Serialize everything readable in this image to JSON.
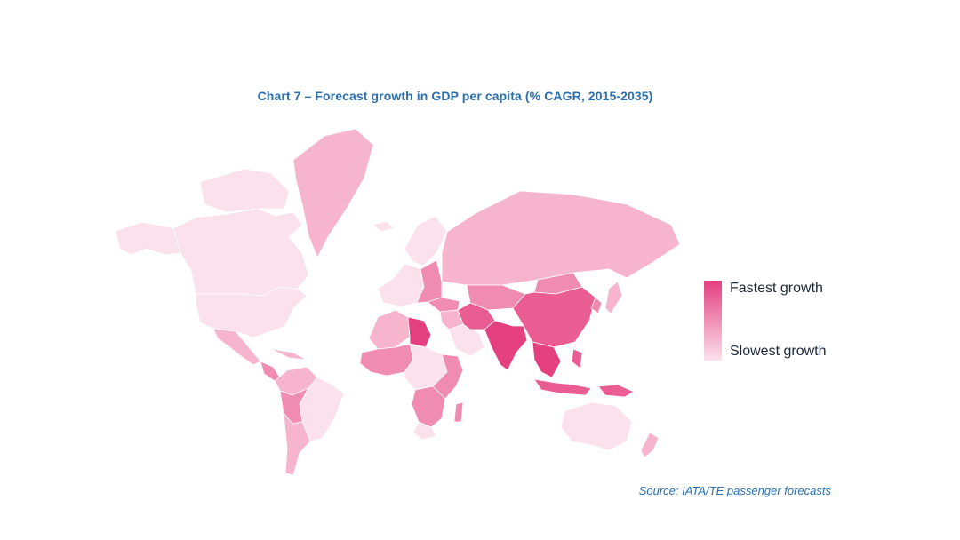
{
  "title": "Chart 7 – Forecast growth in GDP per capita (% CAGR, 2015-2035)",
  "legend": {
    "high_label": "Fastest growth",
    "low_label": "Slowest growth"
  },
  "source": "Source: IATA/TE passenger forecasts",
  "colors": {
    "title": "#2a6fb0",
    "source": "#2a6fb0",
    "no_data": "#ffffff",
    "level_1": "#fbe1ec",
    "level_2": "#f6b4cd",
    "level_3": "#f08bb1",
    "level_4": "#ea5d93",
    "level_5": "#e43f7f",
    "border": "#ffffff"
  },
  "map_data": {
    "type": "choropleth",
    "scale": "relative growth, 1 = slowest, 5 = fastest",
    "regions": [
      {
        "name": "Canada",
        "level": 1
      },
      {
        "name": "Alaska",
        "level": 1
      },
      {
        "name": "Greenland",
        "level": 2
      },
      {
        "name": "Arctic islands",
        "level": 1
      },
      {
        "name": "United States",
        "level": 1
      },
      {
        "name": "Mexico",
        "level": 2
      },
      {
        "name": "Central America",
        "level": 3
      },
      {
        "name": "Caribbean",
        "level": 2
      },
      {
        "name": "Colombia / Venezuela",
        "level": 2
      },
      {
        "name": "Brazil",
        "level": 1
      },
      {
        "name": "Peru / Bolivia",
        "level": 3
      },
      {
        "name": "Argentina / Chile",
        "level": 2
      },
      {
        "name": "Iceland",
        "level": 1
      },
      {
        "name": "Scandinavia",
        "level": 1
      },
      {
        "name": "Western Europe",
        "level": 1
      },
      {
        "name": "Eastern Europe",
        "level": 3
      },
      {
        "name": "Russia",
        "level": 2
      },
      {
        "name": "Turkey",
        "level": 3
      },
      {
        "name": "Central Asia",
        "level": 3
      },
      {
        "name": "Middle East",
        "level": 2
      },
      {
        "name": "Arabia",
        "level": 1
      },
      {
        "name": "North Africa",
        "level": 2
      },
      {
        "name": "Libya",
        "level": 5
      },
      {
        "name": "West Africa",
        "level": 3
      },
      {
        "name": "Central Africa",
        "level": 1
      },
      {
        "name": "East Africa",
        "level": 3
      },
      {
        "name": "Southern Africa",
        "level": 3
      },
      {
        "name": "South Africa",
        "level": 1
      },
      {
        "name": "Madagascar",
        "level": 3
      },
      {
        "name": "Iran / Afghanistan",
        "level": 4
      },
      {
        "name": "India",
        "level": 5
      },
      {
        "name": "China",
        "level": 4
      },
      {
        "name": "Mongolia",
        "level": 3
      },
      {
        "name": "Southeast Asia",
        "level": 5
      },
      {
        "name": "Japan",
        "level": 2
      },
      {
        "name": "Korea",
        "level": 3
      },
      {
        "name": "Indonesia",
        "level": 4
      },
      {
        "name": "Philippines",
        "level": 4
      },
      {
        "name": "Papua New Guinea",
        "level": 4
      },
      {
        "name": "Australia",
        "level": 1
      },
      {
        "name": "New Zealand",
        "level": 2
      }
    ]
  }
}
